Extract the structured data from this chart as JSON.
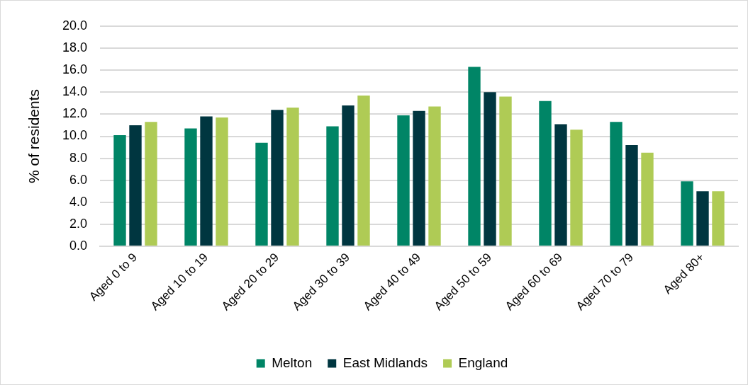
{
  "chart_data": {
    "type": "bar",
    "ylabel": "% of residents",
    "categories": [
      "Aged 0 to 9",
      "Aged 10 to 19",
      "Aged 20 to 29",
      "Aged 30 to 39",
      "Aged 40 to 49",
      "Aged 50 to 59",
      "Aged 60 to 69",
      "Aged 70 to 79",
      "Aged 80+"
    ],
    "series": [
      {
        "name": "Melton",
        "color": "#008566",
        "values": [
          10.1,
          10.7,
          9.4,
          10.9,
          11.9,
          16.3,
          13.2,
          11.3,
          5.9
        ]
      },
      {
        "name": "East Midlands",
        "color": "#003640",
        "values": [
          11.0,
          11.8,
          12.4,
          12.8,
          12.3,
          14.0,
          11.1,
          9.2,
          5.0
        ]
      },
      {
        "name": "England",
        "color": "#afcb55",
        "values": [
          11.3,
          11.7,
          12.6,
          13.7,
          12.7,
          13.6,
          10.6,
          8.5,
          5.0
        ]
      }
    ],
    "ylim": [
      0,
      20
    ],
    "yticks": [
      {
        "value": 0,
        "label": "0.0"
      },
      {
        "value": 2,
        "label": "2.0"
      },
      {
        "value": 4,
        "label": "4.0"
      },
      {
        "value": 6,
        "label": "6.0"
      },
      {
        "value": 8,
        "label": "8.0"
      },
      {
        "value": 10,
        "label": "10.0"
      },
      {
        "value": 12,
        "label": "12.0"
      },
      {
        "value": 14,
        "label": "14.0"
      },
      {
        "value": 16,
        "label": "16.0"
      },
      {
        "value": 18,
        "label": "18.0"
      },
      {
        "value": 20,
        "label": "20.0"
      }
    ],
    "grid": "y",
    "legend": "bottom"
  }
}
